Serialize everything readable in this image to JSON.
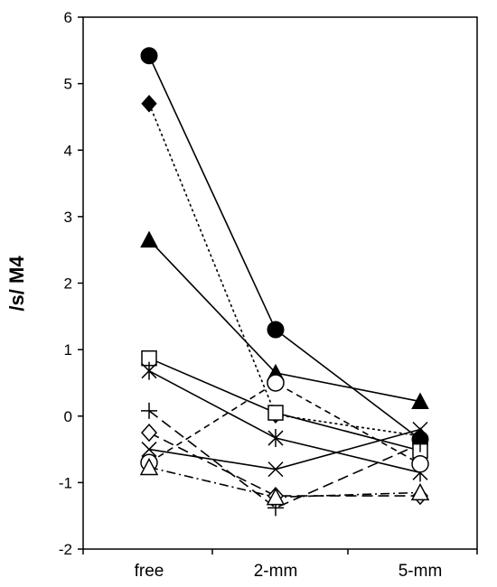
{
  "chart_data": {
    "type": "line",
    "title": "",
    "xlabel": "",
    "ylabel": "/s/ M4",
    "categories": [
      "free",
      "2-mm",
      "5-mm"
    ],
    "ylim": [
      -2,
      6
    ],
    "yticks": [
      -2,
      -1,
      0,
      1,
      2,
      3,
      4,
      5,
      6
    ],
    "ytick_labels": [
      "-2",
      "-1",
      "0",
      "1",
      "2",
      "3",
      "4",
      "5",
      "6"
    ],
    "grid": false,
    "legend": "none",
    "series": [
      {
        "marker": "filled-circle",
        "line": "solid",
        "values": [
          5.42,
          1.3,
          -0.35
        ]
      },
      {
        "marker": "filled-diamond",
        "line": "dotted",
        "values": [
          4.7,
          0.02,
          -0.3
        ]
      },
      {
        "marker": "filled-triangle",
        "line": "solid",
        "values": [
          2.65,
          0.65,
          0.22
        ]
      },
      {
        "marker": "open-square",
        "line": "solid",
        "values": [
          0.87,
          0.05,
          -0.52
        ]
      },
      {
        "marker": "star",
        "line": "solid",
        "values": [
          0.68,
          -0.33,
          -0.85
        ]
      },
      {
        "marker": "plus",
        "line": "long-dash",
        "values": [
          0.08,
          -1.38,
          -0.42
        ]
      },
      {
        "marker": "open-diamond",
        "line": "long-dash",
        "values": [
          -0.25,
          -1.2,
          -1.2
        ]
      },
      {
        "marker": "x",
        "line": "solid",
        "values": [
          -0.5,
          -0.8,
          -0.2
        ]
      },
      {
        "marker": "open-circle",
        "line": "dashed",
        "values": [
          -0.7,
          0.5,
          -0.72
        ]
      },
      {
        "marker": "open-triangle",
        "line": "dash-dot",
        "values": [
          -0.77,
          -1.22,
          -1.15
        ]
      }
    ]
  }
}
